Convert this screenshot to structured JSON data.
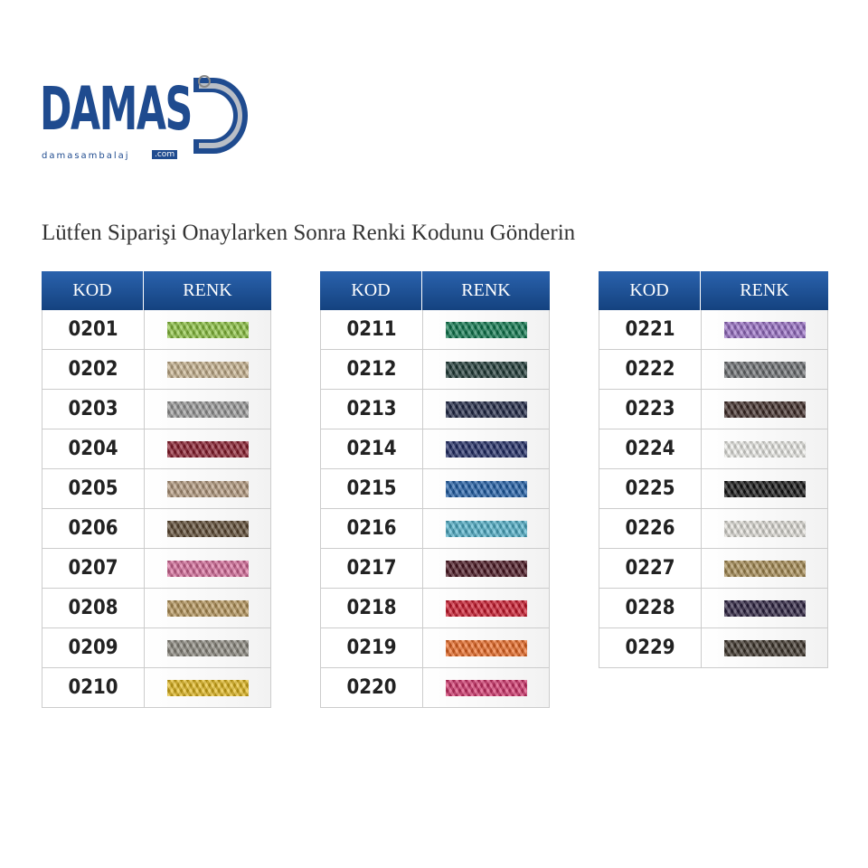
{
  "logo": {
    "name": "DAMAS",
    "site": "damasambalaj",
    "tld": ".com"
  },
  "title": "Lütfen Siparişi Onaylarken Sonra Renki Kodunu Gönderin",
  "tables": [
    {
      "headers": [
        "KOD",
        "RENK"
      ],
      "rows": [
        {
          "code": "0201",
          "color": "#8cc63f"
        },
        {
          "code": "0202",
          "color": "#c9b48f"
        },
        {
          "code": "0203",
          "color": "#9a9a9a"
        },
        {
          "code": "0204",
          "color": "#8b1a2b"
        },
        {
          "code": "0205",
          "color": "#b59a7e"
        },
        {
          "code": "0206",
          "color": "#5e4a32"
        },
        {
          "code": "0207",
          "color": "#d96b9b"
        },
        {
          "code": "0208",
          "color": "#b8975a"
        },
        {
          "code": "0209",
          "color": "#8d8a80"
        },
        {
          "code": "0210",
          "color": "#e5b91a"
        }
      ]
    },
    {
      "headers": [
        "KOD",
        "RENK"
      ],
      "rows": [
        {
          "code": "0211",
          "color": "#0d7a4e"
        },
        {
          "code": "0212",
          "color": "#1e3a36"
        },
        {
          "code": "0213",
          "color": "#1f2746"
        },
        {
          "code": "0214",
          "color": "#1f2a66"
        },
        {
          "code": "0215",
          "color": "#1f5faa"
        },
        {
          "code": "0216",
          "color": "#4fb2cc"
        },
        {
          "code": "0217",
          "color": "#4a1420"
        },
        {
          "code": "0218",
          "color": "#d0172c"
        },
        {
          "code": "0219",
          "color": "#ef6a22"
        },
        {
          "code": "0220",
          "color": "#d6336c"
        }
      ]
    },
    {
      "headers": [
        "KOD",
        "RENK"
      ],
      "rows": [
        {
          "code": "0221",
          "color": "#9a6fc8"
        },
        {
          "code": "0222",
          "color": "#6c6f72"
        },
        {
          "code": "0223",
          "color": "#3e2a26"
        },
        {
          "code": "0224",
          "color": "#efefea"
        },
        {
          "code": "0225",
          "color": "#111111"
        },
        {
          "code": "0226",
          "color": "#e4e2dc"
        },
        {
          "code": "0227",
          "color": "#a88c52"
        },
        {
          "code": "0228",
          "color": "#2b2040"
        },
        {
          "code": "0229",
          "color": "#3b3228"
        }
      ]
    }
  ]
}
